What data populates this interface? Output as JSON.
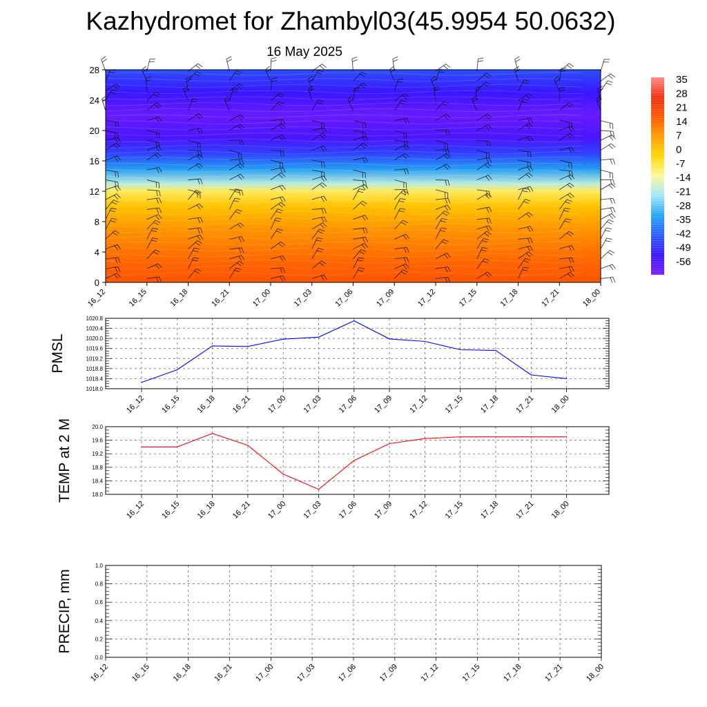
{
  "header": {
    "title": "Kazhydromet for Zhambyl03(45.9954 50.0632)",
    "subtitle": "16 May 2025"
  },
  "chart_data": [
    {
      "type": "heatmap",
      "name": "temperature-profile",
      "x_ticks": [
        "16_12",
        "16_15",
        "16_18",
        "16_21",
        "17_00",
        "17_03",
        "17_06",
        "17_09",
        "17_12",
        "17_15",
        "17_18",
        "17_21",
        "18_00"
      ],
      "y_ticks": [
        "0",
        "4",
        "8",
        "12",
        "16",
        "20",
        "24",
        "28"
      ],
      "ylim": [
        0,
        28
      ],
      "colorbar": {
        "labels": [
          "35",
          "28",
          "21",
          "14",
          "7",
          "0",
          "-7",
          "-14",
          "-21",
          "-28",
          "-35",
          "-42",
          "-49",
          "-56"
        ],
        "range": [
          -63,
          42
        ],
        "colors": [
          "#7a1dff",
          "#3a14ff",
          "#2a5cff",
          "#22a6f2",
          "#9fe6f8",
          "#fff7a0",
          "#ffd800",
          "#ff9e00",
          "#ff5a00",
          "#f03010",
          "#ff8a8a"
        ]
      },
      "profile": [
        {
          "level": 0,
          "value": 22
        },
        {
          "level": 2,
          "value": 20
        },
        {
          "level": 4,
          "value": 17
        },
        {
          "level": 7,
          "value": 12
        },
        {
          "level": 10,
          "value": 4
        },
        {
          "level": 12,
          "value": -6
        },
        {
          "level": 13,
          "value": -18
        },
        {
          "level": 15,
          "value": -33
        },
        {
          "level": 17,
          "value": -46
        },
        {
          "level": 19,
          "value": -55
        },
        {
          "level": 22,
          "value": -60
        },
        {
          "level": 25,
          "value": -52
        },
        {
          "level": 28,
          "value": -44
        }
      ],
      "wind_barbs": true
    },
    {
      "type": "line",
      "name": "pmsl",
      "ylabel": "PMSL",
      "categories": [
        "16_12",
        "16_15",
        "16_18",
        "16_21",
        "17_00",
        "17_03",
        "17_06",
        "17_09",
        "17_12",
        "17_15",
        "17_18",
        "17_21",
        "18_00"
      ],
      "values": [
        1018.25,
        1018.75,
        1019.7,
        1019.68,
        1019.97,
        1020.05,
        1020.7,
        1019.98,
        1019.88,
        1019.55,
        1019.52,
        1018.55,
        1018.4
      ],
      "ylim": [
        1018.0,
        1020.8
      ],
      "y_ticks": [
        "1018.0",
        "1018.4",
        "1018.8",
        "1019.2",
        "1019.6",
        "1020.0",
        "1020.4",
        "1020.8"
      ],
      "color": "#0000ff"
    },
    {
      "type": "line",
      "name": "temp2m",
      "ylabel": "TEMP at 2 M",
      "categories": [
        "16_12",
        "16_15",
        "16_18",
        "16_21",
        "17_00",
        "17_03",
        "17_06",
        "17_09",
        "17_12",
        "17_15",
        "17_18",
        "17_21",
        "18_00"
      ],
      "values": [
        19.4,
        19.4,
        19.8,
        19.45,
        18.6,
        18.15,
        19.0,
        19.5,
        19.65,
        19.7,
        19.7,
        19.7,
        19.7
      ],
      "ylim": [
        18.0,
        20.0
      ],
      "y_ticks": [
        "18.0",
        "18.4",
        "18.8",
        "19.2",
        "19.6",
        "20.0"
      ],
      "color": "#ff0000"
    },
    {
      "type": "line",
      "name": "precip",
      "ylabel": "PRECIP, mm",
      "categories": [
        "16_12",
        "16_15",
        "16_18",
        "16_21",
        "17_00",
        "17_03",
        "17_06",
        "17_09",
        "17_12",
        "17_15",
        "17_18",
        "17_21",
        "18_00"
      ],
      "values": [
        0,
        0,
        0,
        0,
        0,
        0,
        0,
        0,
        0,
        0,
        0,
        0,
        0
      ],
      "ylim": [
        0,
        1.0
      ],
      "y_ticks": [
        "0.0",
        "0.2",
        "0.4",
        "0.6",
        "0.8",
        "1.0"
      ],
      "color": "#006400"
    }
  ]
}
